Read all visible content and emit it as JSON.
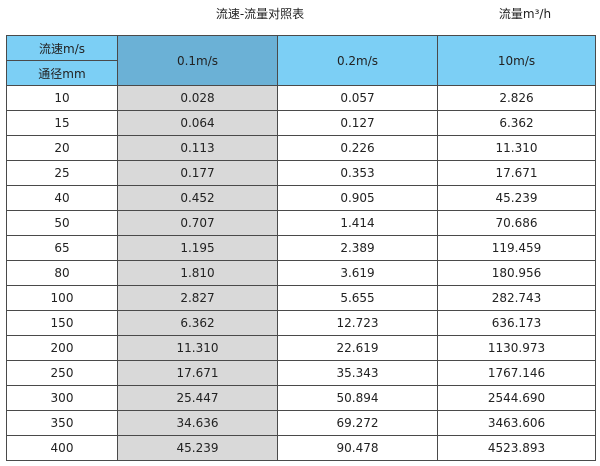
{
  "title": "流速-流量对照表",
  "unit_label": "流量m³/h",
  "table": {
    "corner_top": "流速m/s",
    "corner_bottom": "通径mm",
    "columns": [
      "0.1m/s",
      "0.2m/s",
      "10m/s"
    ],
    "rows": [
      [
        "10",
        "0.028",
        "0.057",
        "2.826"
      ],
      [
        "15",
        "0.064",
        "0.127",
        "6.362"
      ],
      [
        "20",
        "0.113",
        "0.226",
        "11.310"
      ],
      [
        "25",
        "0.177",
        "0.353",
        "17.671"
      ],
      [
        "40",
        "0.452",
        "0.905",
        "45.239"
      ],
      [
        "50",
        "0.707",
        "1.414",
        "70.686"
      ],
      [
        "65",
        "1.195",
        "2.389",
        "119.459"
      ],
      [
        "80",
        "1.810",
        "3.619",
        "180.956"
      ],
      [
        "100",
        "2.827",
        "5.655",
        "282.743"
      ],
      [
        "150",
        "6.362",
        "12.723",
        "636.173"
      ],
      [
        "200",
        "11.310",
        "22.619",
        "1130.973"
      ],
      [
        "250",
        "17.671",
        "35.343",
        "1767.146"
      ],
      [
        "300",
        "25.447",
        "50.894",
        "2544.690"
      ],
      [
        "350",
        "34.636",
        "69.272",
        "3463.606"
      ],
      [
        "400",
        "45.239",
        "90.478",
        "4523.893"
      ]
    ]
  },
  "colors": {
    "header": "#7ccff5",
    "header_highlight": "#6bb1d6",
    "column_highlight": "#d9d9d9",
    "border": "#4a4a4a"
  }
}
